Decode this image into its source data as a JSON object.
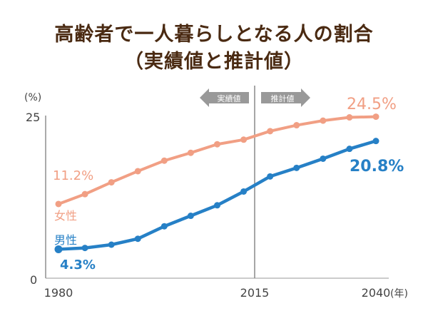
{
  "chart_data": {
    "type": "line",
    "title": "高齢者で一人暮らしとなる人の割合",
    "subtitle": "（実績値と推計値）",
    "ylabel": "(%)",
    "xunit": "(年)",
    "ylim": [
      0,
      25
    ],
    "yticks": [
      "0",
      "25"
    ],
    "xticks": [
      "1980",
      "2015",
      "2040"
    ],
    "grid": false,
    "x": [
      1980,
      1985,
      1990,
      1995,
      2000,
      2005,
      2010,
      2015,
      2020,
      2025,
      2030,
      2035,
      2040
    ],
    "series": [
      {
        "name": "女性",
        "color": "#f19f84",
        "values": [
          11.2,
          12.7,
          14.5,
          16.2,
          17.8,
          19.0,
          20.3,
          21.0,
          22.3,
          23.2,
          23.9,
          24.4,
          24.5
        ],
        "start_label": "11.2%",
        "end_label": "24.5%"
      },
      {
        "name": "男性",
        "color": "#2680c6",
        "values": [
          4.3,
          4.5,
          5.0,
          5.9,
          7.8,
          9.4,
          11.0,
          13.1,
          15.4,
          16.7,
          18.1,
          19.6,
          20.8
        ],
        "start_label": "4.3%",
        "end_label": "20.8%"
      }
    ],
    "annotations": {
      "actual": "実績値",
      "projected": "推計値"
    }
  }
}
